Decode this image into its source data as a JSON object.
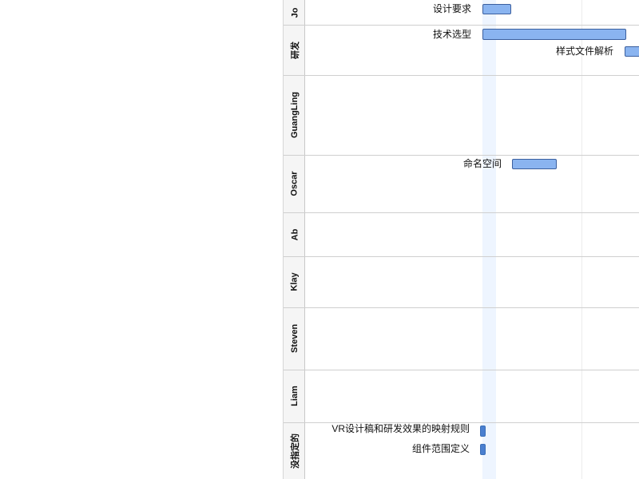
{
  "gantt": {
    "lanes": [
      {
        "id": "jo",
        "label": "Jo"
      },
      {
        "id": "yanfa",
        "label": "研发"
      },
      {
        "id": "guangling",
        "label": "GuangLing"
      },
      {
        "id": "oscar",
        "label": "Oscar"
      },
      {
        "id": "ab",
        "label": "Ab"
      },
      {
        "id": "klay",
        "label": "Klay"
      },
      {
        "id": "steven",
        "label": "Steven"
      },
      {
        "id": "liam",
        "label": "Liam"
      },
      {
        "id": "unassigned",
        "label": "没指定的"
      }
    ],
    "tasks": [
      {
        "id": "design-req",
        "label": "设计要求",
        "lane": "jo"
      },
      {
        "id": "tech-select",
        "label": "技术选型",
        "lane": "yanfa"
      },
      {
        "id": "style-parse",
        "label": "样式文件解析",
        "lane": "yanfa"
      },
      {
        "id": "namespace",
        "label": "命名空间",
        "lane": "oscar"
      },
      {
        "id": "vr-mapping",
        "label": "VR设计稿和研发效果的映射规则",
        "lane": "unassigned"
      },
      {
        "id": "component-scope",
        "label": "组件范围定义",
        "lane": "unassigned"
      }
    ],
    "colors": {
      "bar_fill": "#8ab4f0",
      "bar_border": "#3b5f9e",
      "milestone_fill": "#4a7fd0",
      "today_highlight": "#eef5ff",
      "lane_header_bg": "#f5f5f5"
    }
  }
}
